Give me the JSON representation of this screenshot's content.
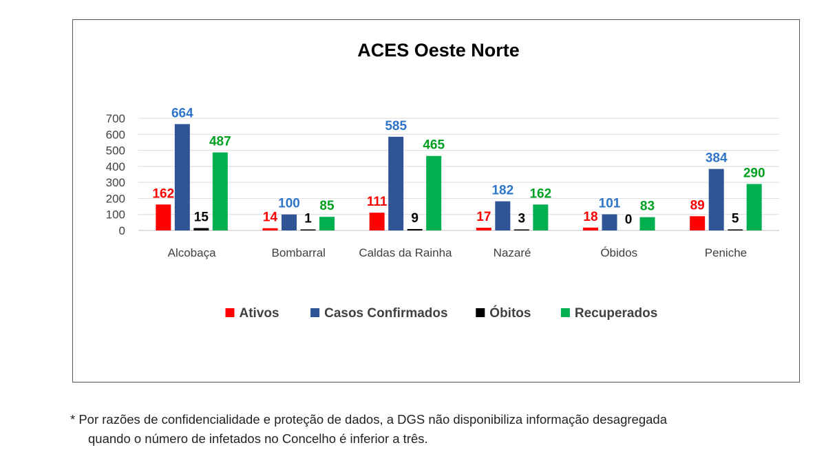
{
  "chart_data": {
    "type": "bar",
    "title": "ACES Oeste Norte",
    "categories": [
      "Alcobaça",
      "Bombarral",
      "Caldas da Rainha",
      "Nazaré",
      "Óbidos",
      "Peniche"
    ],
    "series": [
      {
        "name": "Ativos",
        "color": "#ff0000",
        "values": [
          162,
          14,
          111,
          17,
          18,
          89
        ]
      },
      {
        "name": "Casos Confirmados",
        "color": "#2f5597",
        "label_color": "#2e75c9",
        "values": [
          664,
          100,
          585,
          182,
          101,
          384
        ]
      },
      {
        "name": "Óbitos",
        "color": "#000000",
        "values": [
          15,
          1,
          9,
          3,
          0,
          5
        ]
      },
      {
        "name": "Recuperados",
        "color": "#00b050",
        "label_color": "#00a020",
        "values": [
          487,
          85,
          465,
          162,
          83,
          290
        ]
      }
    ],
    "ylim": [
      0,
      700
    ],
    "yticks": [
      0,
      100,
      200,
      300,
      400,
      500,
      600,
      700
    ],
    "grid": true,
    "legend": "bottom"
  },
  "footnote": {
    "line1": "* Por razões de confidencialidade e proteção de dados, a DGS não disponibiliza informação desagregada",
    "line2": "quando o número de infetados no Concelho é inferior a três."
  }
}
